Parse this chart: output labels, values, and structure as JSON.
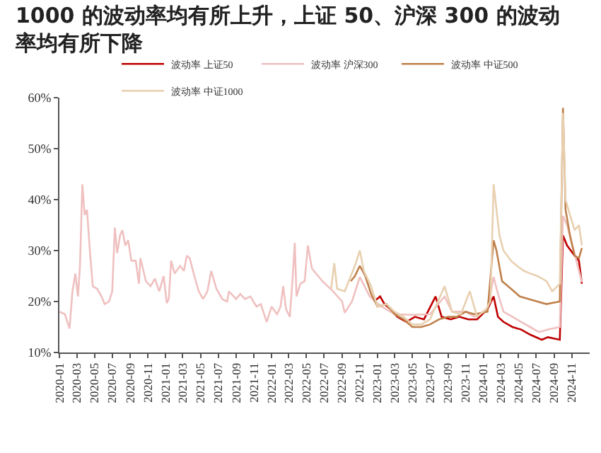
{
  "chart_data": {
    "type": "line",
    "title": "1000 的波动率均有所上升，上证 50、沪深 300 的波动率均有所下降",
    "legend": "top",
    "grid": false,
    "marker": "none",
    "line_style": "solid",
    "xlim": [
      "2020-01-01",
      "2025-01-01"
    ],
    "xticks": [
      "2020-01",
      "2020-03",
      "2020-05",
      "2020-07",
      "2020-09",
      "2020-11",
      "2021-01",
      "2021-03",
      "2021-05",
      "2021-07",
      "2021-09",
      "2021-11",
      "2022-01",
      "2022-03",
      "2022-05",
      "2022-07",
      "2022-09",
      "2022-11",
      "2023-01",
      "2023-03",
      "2023-05",
      "2023-07",
      "2023-09",
      "2023-11",
      "2024-01",
      "2024-03",
      "2024-05",
      "2024-07",
      "2024-09",
      "2024-11"
    ],
    "ylim": [
      10,
      60
    ],
    "yticks": [
      {
        "value": 10,
        "label": "10%"
      },
      {
        "value": 20,
        "label": "20%"
      },
      {
        "value": 30,
        "label": "30%"
      },
      {
        "value": 40,
        "label": "40%"
      },
      {
        "value": 50,
        "label": "50%"
      },
      {
        "value": 60,
        "label": "60%"
      }
    ],
    "series": [
      {
        "name": "波动率 上证50",
        "color": "#c00000",
        "x": [
          "2022-12-20",
          "2023-01-10",
          "2023-01-25",
          "2023-02-15",
          "2023-03-10",
          "2023-04-10",
          "2023-05-10",
          "2023-06-10",
          "2023-07-20",
          "2023-08-10",
          "2023-09-10",
          "2023-10-10",
          "2023-11-10",
          "2023-12-10",
          "2024-01-15",
          "2024-02-05",
          "2024-02-20",
          "2024-03-10",
          "2024-04-10",
          "2024-05-10",
          "2024-06-10",
          "2024-07-20",
          "2024-08-10",
          "2024-09-20",
          "2024-10-01",
          "2024-10-15",
          "2024-11-10",
          "2024-11-25",
          "2024-12-05"
        ],
        "values": [
          20,
          21,
          19.5,
          18.5,
          17,
          16,
          17,
          16.5,
          21,
          17,
          16.5,
          17,
          16.5,
          16.5,
          18.5,
          21,
          17,
          16,
          15,
          14.5,
          13.5,
          12.5,
          13,
          12.5,
          33,
          31,
          29,
          28,
          23.5
        ]
      },
      {
        "name": "波动率 沪深300",
        "color": "#f0c0c0",
        "x": [
          "2020-01-02",
          "2020-01-20",
          "2020-02-05",
          "2020-02-15",
          "2020-02-25",
          "2020-03-05",
          "2020-03-12",
          "2020-03-20",
          "2020-03-28",
          "2020-04-05",
          "2020-04-15",
          "2020-04-25",
          "2020-05-10",
          "2020-05-25",
          "2020-06-05",
          "2020-06-20",
          "2020-07-01",
          "2020-07-10",
          "2020-07-18",
          "2020-07-28",
          "2020-08-05",
          "2020-08-15",
          "2020-08-25",
          "2020-09-05",
          "2020-09-20",
          "2020-10-01",
          "2020-10-06",
          "2020-10-25",
          "2020-11-10",
          "2020-11-25",
          "2020-12-10",
          "2020-12-25",
          "2021-01-05",
          "2021-01-12",
          "2021-01-20",
          "2021-02-01",
          "2021-02-20",
          "2021-03-05",
          "2021-03-15",
          "2021-03-25",
          "2021-04-10",
          "2021-04-25",
          "2021-05-10",
          "2021-05-25",
          "2021-06-07",
          "2021-06-25",
          "2021-07-15",
          "2021-08-01",
          "2021-08-07",
          "2021-09-01",
          "2021-09-15",
          "2021-10-01",
          "2021-10-20",
          "2021-11-10",
          "2021-11-25",
          "2021-12-15",
          "2022-01-01",
          "2022-01-20",
          "2022-02-01",
          "2022-02-10",
          "2022-02-20",
          "2022-03-05",
          "2022-03-15",
          "2022-03-22",
          "2022-03-28",
          "2022-04-10",
          "2022-04-25",
          "2022-05-06",
          "2022-05-20",
          "2022-06-25",
          "2022-08-01",
          "2022-09-01",
          "2022-09-10",
          "2022-10-05",
          "2022-11-01",
          "2022-12-05",
          "2023-01-10",
          "2023-03-01",
          "2023-05-01",
          "2023-07-01",
          "2023-08-20",
          "2023-09-15",
          "2023-11-01",
          "2023-12-01",
          "2024-01-15",
          "2024-02-05",
          "2024-02-20",
          "2024-03-10",
          "2024-04-10",
          "2024-05-10",
          "2024-06-10",
          "2024-07-10",
          "2024-08-10",
          "2024-09-20",
          "2024-10-01",
          "2024-10-15",
          "2024-11-10",
          "2024-12-05"
        ],
        "values": [
          18,
          17.5,
          14.7,
          22,
          25.5,
          21,
          27,
          43,
          37,
          38,
          30,
          23,
          22.5,
          21,
          19.5,
          20,
          22,
          34.5,
          29.5,
          33,
          34,
          31,
          32,
          28,
          28,
          23.5,
          28.5,
          24,
          23,
          24.5,
          22,
          25,
          19.7,
          20.5,
          28,
          25.5,
          27,
          26,
          29,
          28.5,
          25,
          22,
          20.5,
          22,
          26,
          22.5,
          20.5,
          20,
          22,
          20.5,
          21.5,
          20.5,
          21,
          19,
          19.5,
          16,
          19,
          17.5,
          19,
          23,
          18.5,
          17,
          25,
          31.5,
          21,
          23.5,
          24,
          31,
          26.5,
          24,
          22,
          20,
          17.8,
          20,
          24.8,
          21,
          19.2,
          17.5,
          17.4,
          17.5,
          21,
          18,
          18,
          17,
          18.5,
          24.8,
          21.5,
          18,
          17,
          16,
          15,
          14,
          14.5,
          15,
          36.8,
          35,
          29.4,
          23.8
        ]
      },
      {
        "name": "波动率 中证500",
        "color": "#c0804a",
        "x": [
          "2022-10-01",
          "2022-10-15",
          "2022-11-01",
          "2022-11-20",
          "2022-12-10",
          "2023-01-01",
          "2023-02-01",
          "2023-03-01",
          "2023-04-01",
          "2023-05-01",
          "2023-06-01",
          "2023-07-01",
          "2023-08-01",
          "2023-09-01",
          "2023-10-01",
          "2023-11-01",
          "2023-12-01",
          "2024-01-15",
          "2024-02-05",
          "2024-02-15",
          "2024-03-05",
          "2024-04-05",
          "2024-05-05",
          "2024-06-05",
          "2024-07-05",
          "2024-08-05",
          "2024-09-20",
          "2024-10-01",
          "2024-10-10",
          "2024-10-25",
          "2024-11-10",
          "2024-11-25",
          "2024-12-05"
        ],
        "values": [
          24,
          25,
          27,
          25,
          21.5,
          19,
          19.5,
          17.5,
          16.5,
          15,
          15,
          15.5,
          16.5,
          17,
          17,
          18,
          17.5,
          18,
          32,
          30,
          24,
          22.5,
          21,
          20.5,
          20,
          19.5,
          20,
          58,
          38,
          33,
          29,
          28.5,
          30.5
        ]
      },
      {
        "name": "波动率 中证1000",
        "color": "#e8d0b0",
        "x": [
          "2022-07-25",
          "2022-08-05",
          "2022-08-15",
          "2022-09-10",
          "2022-10-01",
          "2022-10-15",
          "2022-11-01",
          "2022-11-15",
          "2022-12-10",
          "2023-01-01",
          "2023-02-01",
          "2023-03-01",
          "2023-04-01",
          "2023-05-01",
          "2023-06-01",
          "2023-07-01",
          "2023-08-20",
          "2023-09-15",
          "2023-10-15",
          "2023-11-15",
          "2023-12-10",
          "2024-01-10",
          "2024-01-25",
          "2024-02-05",
          "2024-02-15",
          "2024-02-25",
          "2024-03-10",
          "2024-04-05",
          "2024-04-25",
          "2024-05-20",
          "2024-06-10",
          "2024-07-05",
          "2024-08-05",
          "2024-08-25",
          "2024-09-20",
          "2024-10-01",
          "2024-10-10",
          "2024-10-25",
          "2024-11-10",
          "2024-11-25",
          "2024-12-05"
        ],
        "values": [
          22.5,
          27.5,
          22.5,
          22,
          25,
          27,
          30,
          26,
          23,
          19,
          19.5,
          18,
          17,
          15.5,
          15.5,
          16.5,
          23,
          18,
          17.5,
          22,
          17,
          18.5,
          20,
          43,
          38,
          33,
          30,
          28,
          27,
          26,
          25.5,
          25,
          24,
          22,
          23.5,
          57,
          40,
          37,
          34,
          35,
          31
        ]
      }
    ]
  }
}
